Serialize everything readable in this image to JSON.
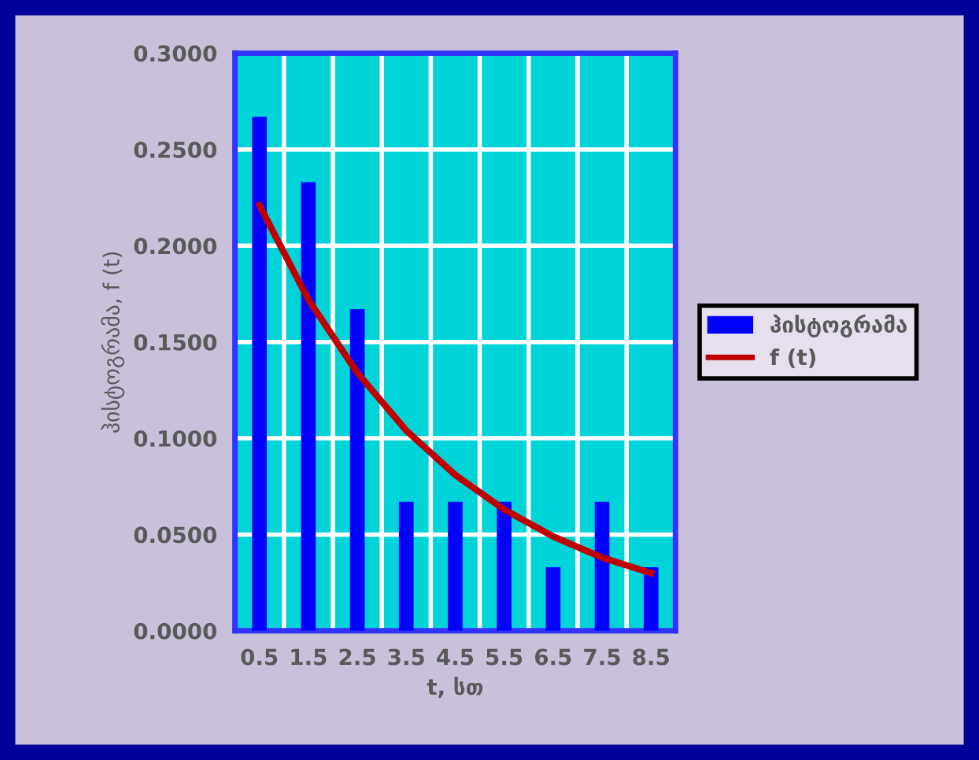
{
  "chart_data": {
    "type": "bar",
    "xlabel": "t, სთ",
    "ylabel": "ჰისტოგრამა, f (t)",
    "categories": [
      "0.5",
      "1.5",
      "2.5",
      "3.5",
      "4.5",
      "5.5",
      "6.5",
      "7.5",
      "8.5"
    ],
    "series": [
      {
        "name": "ჰისტოგრამა",
        "color": "#0000ff",
        "values": [
          0.267,
          0.233,
          0.167,
          0.067,
          0.067,
          0.067,
          0.033,
          0.067,
          0.033
        ]
      },
      {
        "name": "f (t)",
        "type": "line",
        "color": "#c00000",
        "values": [
          0.221,
          0.172,
          0.134,
          0.104,
          0.081,
          0.063,
          0.049,
          0.038,
          0.03
        ]
      }
    ],
    "ylim": [
      0,
      0.3
    ],
    "yticks": [
      {
        "value": 0,
        "label": "0.0000"
      },
      {
        "value": 0.05,
        "label": "0.0500"
      },
      {
        "value": 0.1,
        "label": "0.1000"
      },
      {
        "value": 0.15,
        "label": "0.1500"
      },
      {
        "value": 0.2,
        "label": "0.2000"
      },
      {
        "value": 0.25,
        "label": "0.2500"
      },
      {
        "value": 0.3,
        "label": "0.3000"
      }
    ],
    "grid": true,
    "legend": "right"
  }
}
